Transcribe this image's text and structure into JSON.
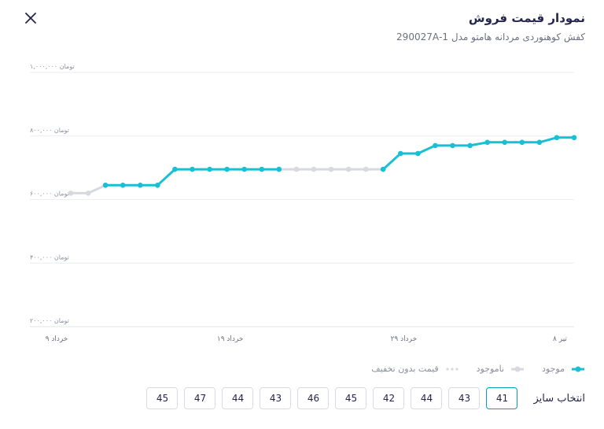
{
  "header": {
    "title": "نمودار قیمت فروش",
    "subtitle": "کفش کوهنوردی مردانه هامتو مدل 1-290027A"
  },
  "chart_data": {
    "type": "line",
    "y_ticks": [
      {
        "value": 1000000,
        "label": "۱,۰۰۰,۰۰۰ تومان"
      },
      {
        "value": 800000,
        "label": "۸۰۰,۰۰۰ تومان"
      },
      {
        "value": 600000,
        "label": "۶۰۰,۰۰۰ تومان"
      },
      {
        "value": 400000,
        "label": "۴۰۰,۰۰۰ تومان"
      },
      {
        "value": 200000,
        "label": "۲۰۰,۰۰۰ تومان"
      }
    ],
    "x_ticks": [
      {
        "index": 0,
        "label": "۹ خرداد"
      },
      {
        "index": 10,
        "label": "۱۹ خرداد"
      },
      {
        "index": 20,
        "label": "۲۹ خرداد"
      },
      {
        "index": 29,
        "label": "۸ تیر"
      }
    ],
    "ylim": [
      200000,
      1000000
    ],
    "grid": true,
    "series": [
      {
        "name": "موجود",
        "color": "#19bfd3",
        "points": [
          {
            "i": 2,
            "v": 645000
          },
          {
            "i": 3,
            "v": 645000
          },
          {
            "i": 4,
            "v": 645000
          },
          {
            "i": 5,
            "v": 645000
          },
          {
            "i": 6,
            "v": 695000
          },
          {
            "i": 7,
            "v": 695000
          },
          {
            "i": 8,
            "v": 695000
          },
          {
            "i": 9,
            "v": 695000
          },
          {
            "i": 10,
            "v": 695000
          },
          {
            "i": 11,
            "v": 695000
          },
          {
            "i": 12,
            "v": 695000
          }
        ]
      },
      {
        "name": "ناموجود",
        "color": "#d7d9e0",
        "points": [
          {
            "i": 0,
            "v": 620000
          },
          {
            "i": 1,
            "v": 620000
          },
          {
            "i": 2,
            "v": 645000
          }
        ]
      },
      {
        "name": "ناموجود",
        "color": "#d7d9e0",
        "points": [
          {
            "i": 12,
            "v": 695000
          },
          {
            "i": 13,
            "v": 695000
          },
          {
            "i": 14,
            "v": 695000
          },
          {
            "i": 15,
            "v": 695000
          },
          {
            "i": 16,
            "v": 695000
          },
          {
            "i": 17,
            "v": 695000
          },
          {
            "i": 18,
            "v": 695000
          }
        ]
      },
      {
        "name": "موجود",
        "color": "#19bfd3",
        "points": [
          {
            "i": 18,
            "v": 695000
          },
          {
            "i": 19,
            "v": 745000
          },
          {
            "i": 20,
            "v": 745000
          },
          {
            "i": 21,
            "v": 770000
          },
          {
            "i": 22,
            "v": 770000
          },
          {
            "i": 23,
            "v": 770000
          },
          {
            "i": 24,
            "v": 780000
          },
          {
            "i": 25,
            "v": 780000
          },
          {
            "i": 26,
            "v": 780000
          },
          {
            "i": 27,
            "v": 780000
          },
          {
            "i": 28,
            "v": 795000
          },
          {
            "i": 29,
            "v": 795000
          }
        ]
      }
    ]
  },
  "legend": {
    "in_stock": "موجود",
    "out_of_stock": "ناموجود",
    "no_discount": "قیمت بدون تخفیف",
    "colors": {
      "in_stock": "#19bfd3",
      "out_of_stock": "#d7d9e0",
      "no_discount": "#d7d9e0"
    }
  },
  "sizes": {
    "label": "انتخاب سایز",
    "selected_index": 0,
    "items": [
      "41",
      "43",
      "44",
      "42",
      "45",
      "46",
      "43",
      "44",
      "47",
      "45"
    ]
  },
  "icons": {
    "close": "close-icon"
  }
}
